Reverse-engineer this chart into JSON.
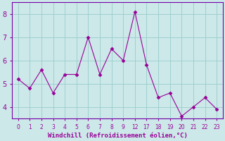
{
  "x_indices": [
    0,
    1,
    2,
    3,
    4,
    5,
    6,
    7,
    8,
    9,
    10,
    11,
    12,
    13,
    14,
    15,
    16,
    17
  ],
  "x_labels": [
    "0",
    "1",
    "2",
    "3",
    "4",
    "5",
    "6",
    "7",
    "8",
    "9",
    "12",
    "17",
    "18",
    "19",
    "20",
    "21",
    "22",
    "23"
  ],
  "y": [
    5.2,
    4.8,
    5.6,
    4.6,
    5.4,
    5.4,
    7.0,
    5.4,
    6.5,
    6.0,
    8.1,
    5.8,
    4.4,
    4.6,
    3.6,
    4.0,
    4.4,
    3.9
  ],
  "line_color": "#990099",
  "marker": "D",
  "marker_size": 2.5,
  "bg_color": "#cce8e8",
  "grid_color": "#99cccc",
  "xlabel": "Windchill (Refroidissement éolien,°C)",
  "xlabel_color": "#990099",
  "tick_color": "#990099",
  "ylim": [
    3.5,
    8.5
  ],
  "yticks": [
    4,
    5,
    6,
    7,
    8
  ],
  "xlim": [
    -0.5,
    17.5
  ],
  "axis_line_color": "#7700aa"
}
